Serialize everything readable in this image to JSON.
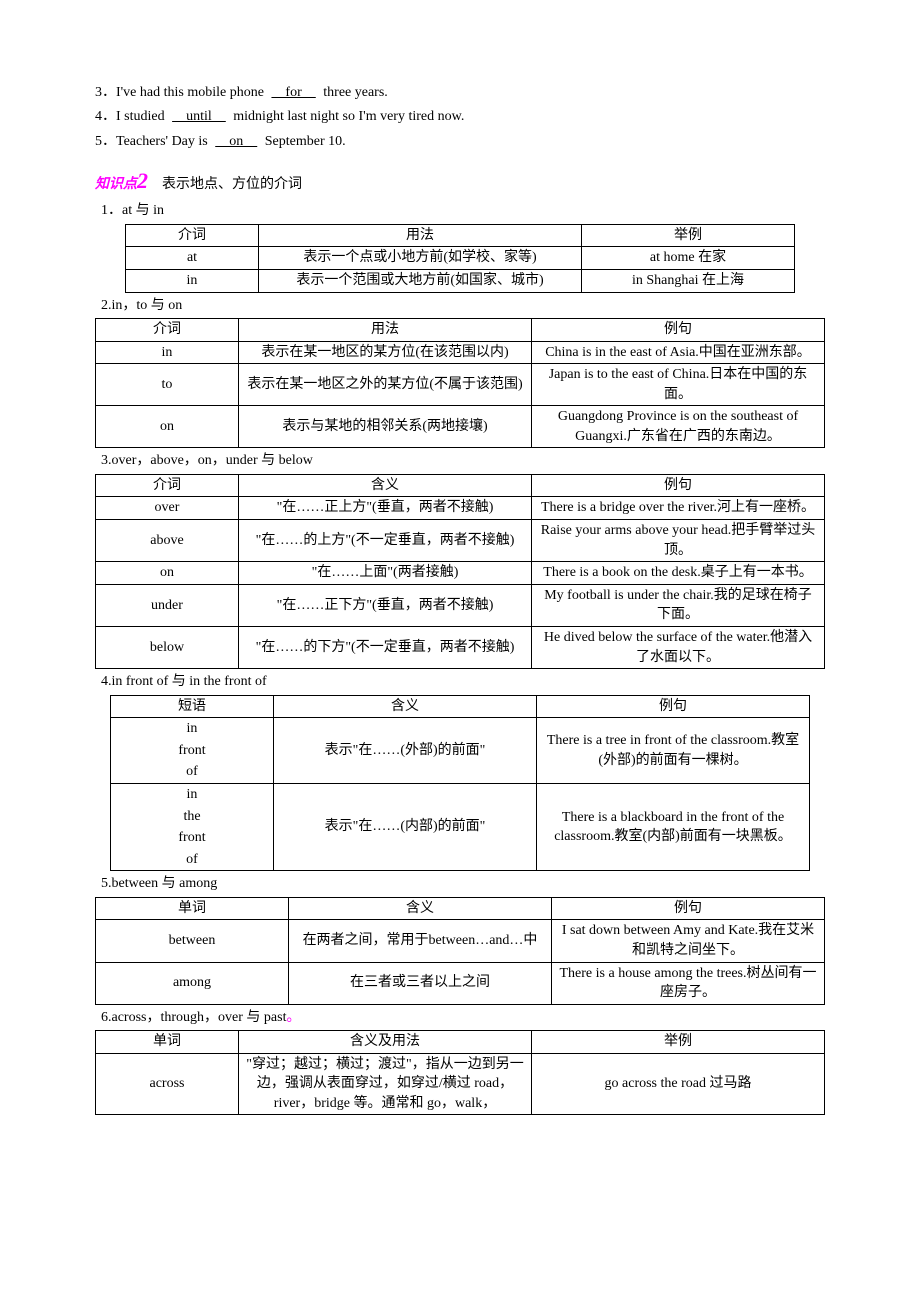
{
  "sentences": {
    "s3": {
      "num": "3．",
      "pre": "I've had this mobile phone ",
      "u": "　for　",
      "post": " three years."
    },
    "s4": {
      "num": "4．",
      "pre": "I studied ",
      "u": "　until　",
      "post": " midnight last night so I'm very tired now."
    },
    "s5": {
      "num": "5．",
      "pre": "Teachers' Day is ",
      "u": "　on　",
      "post": " September 10."
    }
  },
  "knowledge": {
    "label": "知识点",
    "num": "2",
    "title": "　表示地点、方位的介词"
  },
  "sec1": {
    "title": "1．at 与 in",
    "headers": [
      "介词",
      "用法",
      "举例"
    ],
    "rows": [
      [
        "at",
        "表示一个点或小地方前(如学校、家等)",
        "at home 在家"
      ],
      [
        "in",
        "表示一个范围或大地方前(如国家、城市)",
        "in Shanghai 在上海"
      ]
    ],
    "widths": [
      120,
      310,
      200
    ]
  },
  "sec2": {
    "title": "2.in，to 与 on",
    "headers": [
      "介词",
      "用法",
      "例句"
    ],
    "rows": [
      [
        "in",
        "表示在某一地区的某方位(在该范围以内)",
        "China is in the east of Asia.中国在亚洲东部。"
      ],
      [
        "to",
        "表示在某一地区之外的某方位(不属于该范围)",
        "Japan is to the east of China.日本在中国的东面。"
      ],
      [
        "on",
        "表示与某地的相邻关系(两地接壤)",
        "Guangdong Province is on the southeast of Guangxi.广东省在广西的东南边。"
      ]
    ],
    "widths": [
      130,
      280,
      280
    ]
  },
  "sec3": {
    "title": "3.over，above，on，under 与 below",
    "headers": [
      "介词",
      "含义",
      "例句"
    ],
    "rows": [
      [
        "over",
        "\"在……正上方\"(垂直，两者不接触)",
        "There is a bridge over the river.河上有一座桥。"
      ],
      [
        "above",
        "\"在……的上方\"(不一定垂直，两者不接触)",
        "Raise your arms above your head.把手臂举过头顶。"
      ],
      [
        "on",
        "\"在……上面\"(两者接触)",
        "There is a book on the desk.桌子上有一本书。"
      ],
      [
        "under",
        "\"在……正下方\"(垂直，两者不接触)",
        "My football is under the chair.我的足球在椅子下面。"
      ],
      [
        "below",
        "\"在……的下方\"(不一定垂直，两者不接触)",
        "He dived below the surface of the water.他潜入了水面以下。"
      ]
    ],
    "widths": [
      130,
      280,
      280
    ]
  },
  "sec4": {
    "title": "4.in front of 与 in the front of",
    "headers": [
      "短语",
      "含义",
      "例句"
    ],
    "rows": [
      [
        "in front of",
        "表示\"在……(外部)的前面\"",
        "There is a tree in front of the classroom.教室(外部)的前面有一棵树。"
      ],
      [
        "in the front of",
        "表示\"在……(内部)的前面\"",
        "There is a blackboard in the front of the classroom.教室(内部)前面有一块黑板。"
      ]
    ],
    "widths": [
      150,
      250,
      260
    ],
    "phrase_parts": [
      [
        "in",
        "front",
        "of"
      ],
      [
        "in",
        "the",
        "front",
        "of"
      ]
    ]
  },
  "sec5": {
    "title": "5.between 与 among",
    "headers": [
      "单词",
      "含义",
      "例句"
    ],
    "rows": [
      [
        "between",
        "在两者之间，常用于between…and…中",
        "I sat down between Amy and Kate.我在艾米和凯特之间坐下。"
      ],
      [
        "among",
        "在三者或三者以上之间",
        "There is a house among the trees.树丛间有一座房子。"
      ]
    ],
    "widths": [
      180,
      250,
      260
    ]
  },
  "sec6": {
    "title": "6.across，through，over 与 past",
    "headers": [
      "单词",
      "含义及用法",
      "举例"
    ],
    "rows": [
      [
        "across",
        "\"穿过；越过；横过；渡过\"，指从一边到另一边，强调从表面穿过，如穿过/横过 road，river，bridge 等。通常和 go，walk，",
        "go across the road 过马路"
      ]
    ],
    "widths": [
      130,
      280,
      280
    ]
  }
}
